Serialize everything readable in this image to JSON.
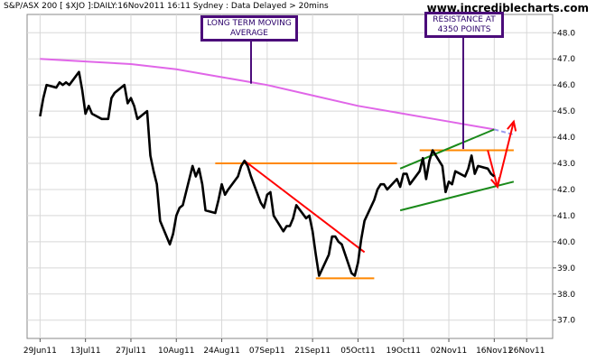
{
  "header": {
    "title": "S&P/ASX 200 [ $XJO ]:DAILY:16Nov2011 16:11 Sydney : Data Delayed > 20mins",
    "brand": "www.incrediblecharts.com"
  },
  "annotations": {
    "ma_label": "LONG TERM MOVING AVERAGE",
    "resistance_label": "RESISTANCE AT 4350 POINTS"
  },
  "colors": {
    "price": "#000000",
    "moving_average": "#e066e8",
    "support_resistance": "#ff8800",
    "channel": "#1a8a1a",
    "trend_red": "#ff0000",
    "callout_border": "#4b0c7a",
    "grid": "#d8d8d8"
  },
  "chart_data": {
    "type": "line",
    "title": "S&P/ASX 200 [ $XJO ]:DAILY:16Nov2011 16:11 Sydney : Data Delayed > 20mins",
    "xlabel": "",
    "ylabel": "",
    "ylim": [
      36.3,
      48.7
    ],
    "yticks": [
      37.0,
      38.0,
      39.0,
      40.0,
      41.0,
      42.0,
      43.0,
      44.0,
      45.0,
      46.0,
      47.0,
      48.0
    ],
    "x_tick_labels": [
      "29Jun11",
      "13Jul11",
      "27Jul11",
      "10Aug11",
      "24Aug11",
      "07Sep11",
      "21Sep11",
      "05Oct11",
      "19Oct11",
      "02Nov11",
      "16Nov11",
      "26Nov11"
    ],
    "grid": true,
    "series": [
      {
        "name": "",
        "role": "price",
        "points": [
          [
            "29Jun11",
            44.8
          ],
          [
            "30Jun11",
            45.5
          ],
          [
            "01Jul11",
            46.0
          ],
          [
            "04Jul11",
            45.9
          ],
          [
            "05Jul11",
            46.1
          ],
          [
            "06Jul11",
            46.0
          ],
          [
            "07Jul11",
            46.1
          ],
          [
            "08Jul11",
            46.0
          ],
          [
            "11Jul11",
            46.5
          ],
          [
            "12Jul11",
            45.8
          ],
          [
            "13Jul11",
            44.9
          ],
          [
            "14Jul11",
            45.2
          ],
          [
            "15Jul11",
            44.9
          ],
          [
            "18Jul11",
            44.7
          ],
          [
            "19Jul11",
            44.7
          ],
          [
            "20Jul11",
            44.7
          ],
          [
            "21Jul11",
            45.5
          ],
          [
            "22Jul11",
            45.7
          ],
          [
            "25Jul11",
            46.0
          ],
          [
            "26Jul11",
            45.3
          ],
          [
            "27Jul11",
            45.5
          ],
          [
            "28Jul11",
            45.2
          ],
          [
            "29Jul11",
            44.7
          ],
          [
            "01Aug11",
            45.0
          ],
          [
            "02Aug11",
            43.3
          ],
          [
            "03Aug11",
            42.7
          ],
          [
            "04Aug11",
            42.2
          ],
          [
            "05Aug11",
            40.8
          ],
          [
            "08Aug11",
            39.9
          ],
          [
            "09Aug11",
            40.3
          ],
          [
            "10Aug11",
            41.0
          ],
          [
            "11Aug11",
            41.3
          ],
          [
            "12Aug11",
            41.4
          ],
          [
            "15Aug11",
            42.9
          ],
          [
            "16Aug11",
            42.5
          ],
          [
            "17Aug11",
            42.8
          ],
          [
            "18Aug11",
            42.2
          ],
          [
            "19Aug11",
            41.2
          ],
          [
            "22Aug11",
            41.1
          ],
          [
            "23Aug11",
            41.6
          ],
          [
            "24Aug11",
            42.2
          ],
          [
            "25Aug11",
            41.8
          ],
          [
            "26Aug11",
            42.0
          ],
          [
            "29Aug11",
            42.5
          ],
          [
            "30Aug11",
            42.9
          ],
          [
            "31Aug11",
            43.1
          ],
          [
            "01Sep11",
            42.9
          ],
          [
            "02Sep11",
            42.5
          ],
          [
            "05Sep11",
            41.5
          ],
          [
            "06Sep11",
            41.3
          ],
          [
            "07Sep11",
            41.8
          ],
          [
            "08Sep11",
            41.9
          ],
          [
            "09Sep11",
            41.0
          ],
          [
            "12Sep11",
            40.4
          ],
          [
            "13Sep11",
            40.6
          ],
          [
            "14Sep11",
            40.6
          ],
          [
            "15Sep11",
            40.9
          ],
          [
            "16Sep11",
            41.4
          ],
          [
            "19Sep11",
            40.9
          ],
          [
            "20Sep11",
            41.0
          ],
          [
            "21Sep11",
            40.4
          ],
          [
            "22Sep11",
            39.5
          ],
          [
            "23Sep11",
            38.7
          ],
          [
            "26Sep11",
            39.5
          ],
          [
            "27Sep11",
            40.2
          ],
          [
            "28Sep11",
            40.2
          ],
          [
            "29Sep11",
            40.0
          ],
          [
            "30Sep11",
            39.9
          ],
          [
            "03Oct11",
            38.8
          ],
          [
            "04Oct11",
            38.7
          ],
          [
            "05Oct11",
            39.2
          ],
          [
            "06Oct11",
            40.1
          ],
          [
            "07Oct11",
            40.8
          ],
          [
            "10Oct11",
            41.6
          ],
          [
            "11Oct11",
            42.0
          ],
          [
            "12Oct11",
            42.2
          ],
          [
            "13Oct11",
            42.2
          ],
          [
            "14Oct11",
            42.0
          ],
          [
            "17Oct11",
            42.4
          ],
          [
            "18Oct11",
            42.1
          ],
          [
            "19Oct11",
            42.6
          ],
          [
            "20Oct11",
            42.6
          ],
          [
            "21Oct11",
            42.2
          ],
          [
            "24Oct11",
            42.7
          ],
          [
            "25Oct11",
            43.2
          ],
          [
            "26Oct11",
            42.4
          ],
          [
            "27Oct11",
            43.1
          ],
          [
            "28Oct11",
            43.5
          ],
          [
            "31Oct11",
            42.9
          ],
          [
            "01Nov11",
            41.9
          ],
          [
            "02Nov11",
            42.3
          ],
          [
            "03Nov11",
            42.2
          ],
          [
            "04Nov11",
            42.7
          ],
          [
            "07Nov11",
            42.5
          ],
          [
            "08Nov11",
            42.8
          ],
          [
            "09Nov11",
            43.3
          ],
          [
            "10Nov11",
            42.6
          ],
          [
            "11Nov11",
            42.9
          ],
          [
            "14Nov11",
            42.8
          ],
          [
            "15Nov11",
            42.6
          ],
          [
            "16Nov11",
            42.5
          ]
        ]
      },
      {
        "name": "",
        "role": "moving_average",
        "points": [
          [
            "29Jun11",
            47.0
          ],
          [
            "13Jul11",
            46.9
          ],
          [
            "27Jul11",
            46.8
          ],
          [
            "10Aug11",
            46.6
          ],
          [
            "24Aug11",
            46.3
          ],
          [
            "07Sep11",
            46.0
          ],
          [
            "21Sep11",
            45.6
          ],
          [
            "05Oct11",
            45.2
          ],
          [
            "19Oct11",
            44.9
          ],
          [
            "02Nov11",
            44.6
          ],
          [
            "16Nov11",
            44.3
          ]
        ],
        "projection": [
          [
            "16Nov11",
            44.3
          ],
          [
            "22Nov11",
            44.1
          ]
        ]
      }
    ],
    "overlays": [
      {
        "type": "support_resistance",
        "from": [
          "22Aug11",
          43.0
        ],
        "to": [
          "17Oct11",
          43.0
        ]
      },
      {
        "type": "support_resistance",
        "from": [
          "22Sep11",
          38.6
        ],
        "to": [
          "10Oct11",
          38.6
        ]
      },
      {
        "type": "support_resistance",
        "from": [
          "24Oct11",
          43.5
        ],
        "to": [
          "22Nov11",
          43.5
        ]
      },
      {
        "type": "trend_red",
        "from": [
          "31Aug11",
          43.1
        ],
        "to": [
          "07Oct11",
          39.6
        ]
      },
      {
        "type": "channel",
        "from": [
          "18Oct11",
          42.8
        ],
        "to": [
          "16Nov11",
          44.3
        ]
      },
      {
        "type": "channel",
        "from": [
          "18Oct11",
          41.2
        ],
        "to": [
          "22Nov11",
          42.3
        ]
      },
      {
        "type": "arrow_red",
        "from": [
          "14Nov11",
          43.5
        ],
        "to": [
          "17Nov11",
          42.1
        ]
      },
      {
        "type": "arrow_red",
        "from": [
          "17Nov11",
          42.1
        ],
        "to": [
          "22Nov11",
          44.6
        ]
      }
    ]
  }
}
